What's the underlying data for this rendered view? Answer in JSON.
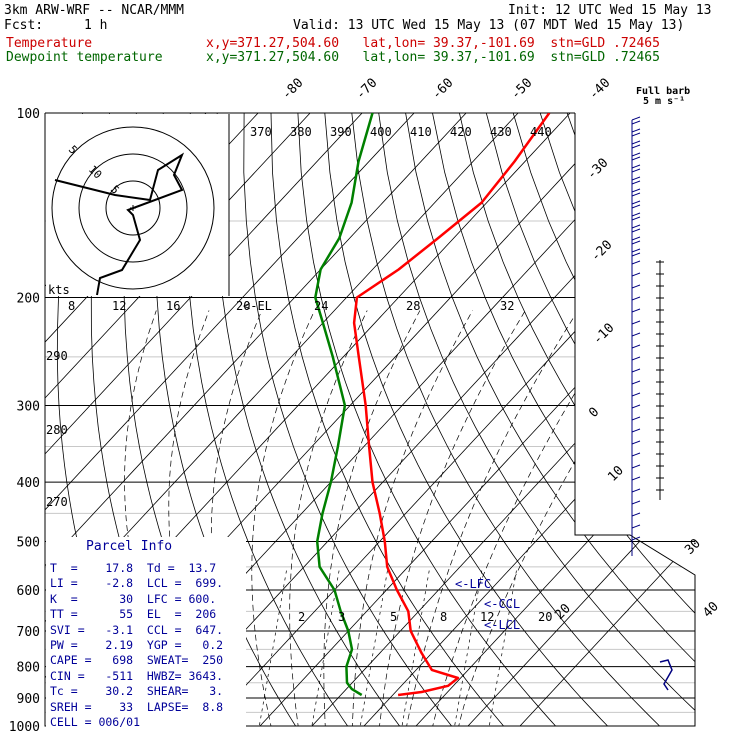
{
  "header": {
    "model": "3km ARW-WRF -- NCAR/MMM",
    "init": "Init: 12 UTC Wed 15 May 13",
    "fcst_label": "Fcst:",
    "fcst_value": "1 h",
    "valid": "Valid: 13 UTC Wed 15 May 13 (07 MDT Wed 15 May 13)",
    "temp_label": "Temperature",
    "dew_label": "Dewpoint temperature",
    "temp_info": "x,y=371.27,504.60   lat,lon= 39.37,-101.69  stn=GLD .72465",
    "dew_info": "x,y=371.27,504.60   lat,lon= 39.37,-101.69  stn=GLD .72465"
  },
  "colors": {
    "temperature": "#ff0000",
    "dewpoint": "#008000",
    "barbs": "#000080",
    "text_blue": "#000099",
    "red_text": "#cc0000",
    "green_text": "#006600"
  },
  "chart_data": {
    "type": "line",
    "title": "Skew-T log-P",
    "y_axis": {
      "label": "",
      "scale": "log",
      "ticks": [
        "100",
        "200",
        "300",
        "400",
        "500",
        "600",
        "700",
        "800",
        "900",
        "1000"
      ]
    },
    "x_axis_labels_top_skewed": [
      "-80",
      "-70",
      "-60",
      "-50",
      "-40"
    ],
    "x_axis_labels_right_skewed": [
      "-30",
      "-20",
      "-10",
      "0",
      "10",
      "20",
      "30",
      "40"
    ],
    "theta_labels": [
      "370",
      "380",
      "390",
      "400",
      "410",
      "420",
      "430",
      "440"
    ],
    "theta_left_labels": [
      "290",
      "280",
      "270"
    ],
    "mixing_ratio_labels_200mb": [
      "8",
      "12",
      "16",
      "20",
      "24",
      "28",
      "32"
    ],
    "mixing_ratio_labels_700mb": [
      "2",
      "3",
      "5",
      "8",
      "12",
      "20"
    ],
    "level_markers": {
      "el": "<-EL",
      "lfc": "<-LFC",
      "ccl": "<-CCL",
      "lcl": "<-LCL"
    },
    "hodograph": {
      "units_label": "kts",
      "ring_labels": [
        "5",
        "10",
        "5"
      ]
    },
    "full_barb_label": "Full barb",
    "full_barb_units": "5 m s⁻¹",
    "series": [
      {
        "name": "Temperature",
        "points": [
          [
            890,
            21
          ],
          [
            880,
            25
          ],
          [
            860,
            29
          ],
          [
            835,
            29.5
          ],
          [
            810,
            23
          ],
          [
            760,
            18
          ],
          [
            700,
            12
          ],
          [
            650,
            8
          ],
          [
            600,
            2
          ],
          [
            550,
            -4
          ],
          [
            500,
            -9
          ],
          [
            450,
            -15
          ],
          [
            400,
            -22
          ],
          [
            350,
            -29
          ],
          [
            300,
            -37
          ],
          [
            250,
            -47
          ],
          [
            220,
            -54
          ],
          [
            200,
            -58
          ],
          [
            180,
            -55
          ],
          [
            160,
            -53
          ],
          [
            140,
            -51
          ],
          [
            120,
            -52
          ],
          [
            100,
            -54
          ]
        ]
      },
      {
        "name": "Dewpoint temperature",
        "points": [
          [
            890,
            14
          ],
          [
            870,
            11
          ],
          [
            850,
            9
          ],
          [
            800,
            6
          ],
          [
            750,
            4
          ],
          [
            700,
            0
          ],
          [
            650,
            -5
          ],
          [
            600,
            -10
          ],
          [
            550,
            -17
          ],
          [
            500,
            -22
          ],
          [
            450,
            -26
          ],
          [
            400,
            -30
          ],
          [
            350,
            -35
          ],
          [
            300,
            -41
          ],
          [
            250,
            -52
          ],
          [
            220,
            -60
          ],
          [
            200,
            -66
          ],
          [
            180,
            -70
          ],
          [
            160,
            -72
          ],
          [
            140,
            -76
          ],
          [
            120,
            -82
          ],
          [
            100,
            -88
          ]
        ]
      }
    ]
  },
  "parcel": {
    "title": "Parcel Info",
    "rows": [
      "T  =    17.8  Td =  13.7",
      "LI =    -2.8  LCL =  699.",
      "K  =      30  LFC = 600.",
      "TT =      55  EL  =  206",
      "SVI =   -3.1  CCL =  647.",
      "PW =    2.19  YGP =   0.2",
      "CAPE =   698  SWEAT=  250",
      "CIN =   -511  HWBZ= 3643.",
      "Tc =    30.2  SHEAR=   3.",
      "SREH =    33  LAPSE=  8.8",
      "CELL = 006/01"
    ]
  }
}
